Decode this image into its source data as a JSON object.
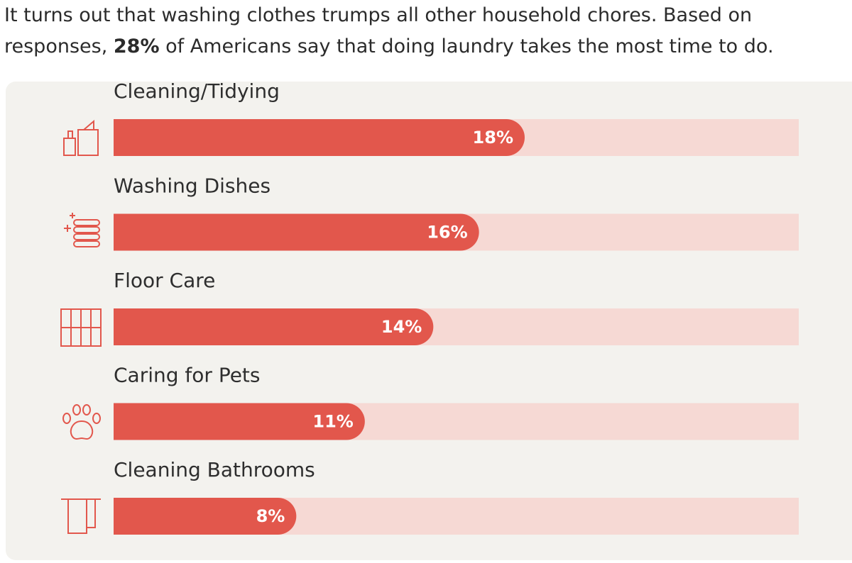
{
  "intro": [
    "It turns out that washing clothes trumps all other household chores. Based on responses, ",
    "28%",
    " of Americans say that doing laundry takes the most time to do."
  ],
  "chart_data": {
    "type": "bar",
    "orientation": "horizontal",
    "categories": [
      "Cleaning/Tidying",
      "Washing Dishes",
      "Floor Care",
      "Caring for Pets",
      "Cleaning Bathrooms"
    ],
    "values": [
      18,
      16,
      14,
      11,
      8
    ],
    "value_labels": [
      "18%",
      "16%",
      "14%",
      "11%",
      "8%"
    ],
    "color": "#e2574c",
    "track_color": "#f6d9d4",
    "xlim": [
      0,
      30
    ]
  }
}
